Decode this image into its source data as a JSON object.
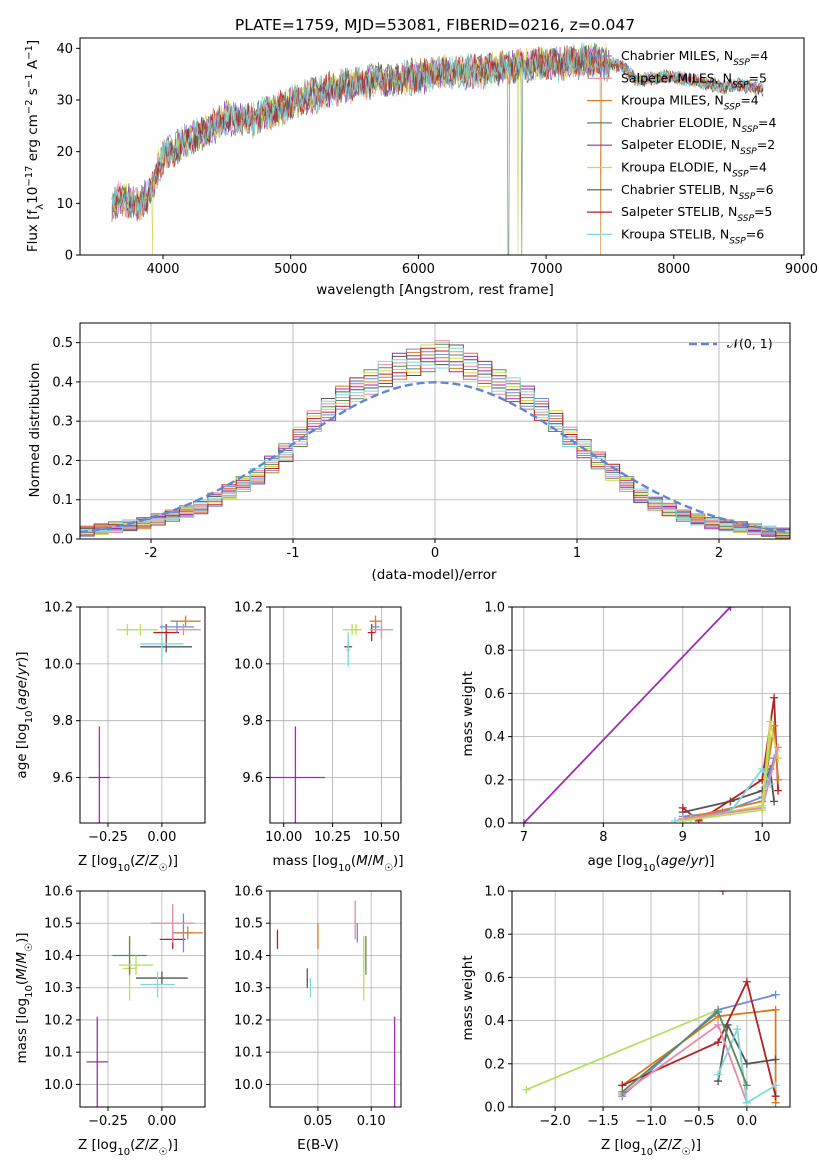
{
  "chart_data": [
    {
      "id": "spectrum",
      "type": "line",
      "title": "PLATE=1759, MJD=53081, FIBERID=0216, z=0.047",
      "xlabel": "wavelength [Angstrom, rest frame]",
      "ylabel": "Flux [f_λ10^-17 erg cm^-2 s^-1 A^-1]",
      "xlim": [
        3350,
        9020
      ],
      "ylim": [
        0,
        42
      ],
      "xticks": [
        4000,
        5000,
        6000,
        7000,
        8000,
        9000
      ],
      "yticks": [
        0,
        10,
        20,
        30,
        40
      ],
      "grid": false,
      "legend_position": "top-right",
      "series": [
        {
          "name": "Chabrier MILES, N_SSP=4",
          "color": "#6c8ed6"
        },
        {
          "name": "Salpeter MILES, N_SSP=5",
          "color": "#e88aa8"
        },
        {
          "name": "Kroupa MILES, N_SSP=4",
          "color": "#d97b22"
        },
        {
          "name": "Chabrier ELODIE, N_SSP=4",
          "color": "#5b8a5b"
        },
        {
          "name": "Salpeter ELODIE, N_SSP=2",
          "color": "#9b2fae"
        },
        {
          "name": "Kroupa ELODIE, N_SSP=4",
          "color": "#d6d44a"
        },
        {
          "name": "Chabrier STELIB, N_SSP=6",
          "color": "#555555"
        },
        {
          "name": "Salpeter STELIB, N_SSP=5",
          "color": "#b22222"
        },
        {
          "name": "Kroupa STELIB, N_SSP=6",
          "color": "#7fd8dc"
        }
      ],
      "continuum": {
        "x": [
          3600,
          3700,
          3800,
          3900,
          3950,
          4000,
          4100,
          4200,
          4300,
          4400,
          4500,
          4600,
          4700,
          4800,
          4900,
          5000,
          5100,
          5200,
          5300,
          5400,
          5500,
          5600,
          5700,
          5800,
          5900,
          6000,
          6100,
          6200,
          6300,
          6400,
          6500,
          6600,
          6700,
          6800,
          6900,
          7000,
          7100,
          7200,
          7300,
          7400,
          7500,
          7600,
          7700,
          7800,
          7900,
          8000,
          8100,
          8200,
          8300,
          8400,
          8500,
          8600,
          8700
        ],
        "y": [
          10,
          11,
          9.5,
          12,
          16,
          19,
          20.5,
          22.5,
          23.5,
          25,
          26.5,
          26.5,
          26,
          27.5,
          28,
          29.5,
          30.5,
          31,
          32,
          32.5,
          33,
          33.5,
          34,
          34,
          34.5,
          34.5,
          35,
          35.5,
          35.5,
          35.5,
          35.5,
          36,
          36.5,
          36.5,
          37,
          37,
          37,
          37.5,
          37.5,
          37.5,
          37,
          36.5,
          34,
          34,
          34.5,
          34.5,
          34,
          33.5,
          33,
          32.5,
          33,
          32.5,
          32
        ]
      },
      "dips": [
        {
          "x": 3920,
          "series": "Kroupa ELODIE, N_SSP=4"
        },
        {
          "x": 6705,
          "series": "Chabrier ELODIE, N_SSP=4"
        },
        {
          "x": 6780,
          "series": "Kroupa ELODIE, N_SSP=4"
        },
        {
          "x": 6810,
          "series": "Chabrier ELODIE, N_SSP=4"
        },
        {
          "x": 7430,
          "series": "Kroupa MILES, N_SSP=4"
        }
      ]
    },
    {
      "id": "residuals",
      "type": "step",
      "xlabel": "(data-model)/error",
      "ylabel": "Normed distribution",
      "xlim": [
        -2.5,
        2.5
      ],
      "ylim": [
        0,
        0.55
      ],
      "xticks": [
        -2,
        -1,
        0,
        1,
        2
      ],
      "yticks": [
        0.0,
        0.1,
        0.2,
        0.3,
        0.4,
        0.5
      ],
      "grid": true,
      "legend_position": "top-right",
      "reference_label": "𝒩(0, 1)",
      "reference_color": "#5f86d2",
      "bin_width": 0.1,
      "base_profile": [
        0.02,
        0.025,
        0.03,
        0.035,
        0.04,
        0.05,
        0.06,
        0.07,
        0.08,
        0.1,
        0.12,
        0.14,
        0.16,
        0.19,
        0.22,
        0.26,
        0.3,
        0.33,
        0.36,
        0.38,
        0.4,
        0.42,
        0.44,
        0.45,
        0.46,
        0.47,
        0.46,
        0.44,
        0.42,
        0.4,
        0.38,
        0.36,
        0.33,
        0.3,
        0.26,
        0.23,
        0.2,
        0.17,
        0.14,
        0.11,
        0.09,
        0.075,
        0.06,
        0.05,
        0.04,
        0.035,
        0.03,
        0.025,
        0.02,
        0.015
      ]
    },
    {
      "id": "age-vs-Z",
      "type": "scatter",
      "xlabel": "Z [log10(Z/Z☉)]",
      "ylabel": "age [log10(age/yr)]",
      "xlim": [
        -0.38,
        0.2
      ],
      "ylim": [
        9.44,
        10.2
      ],
      "xticks": [
        -0.25,
        0.0
      ],
      "xtick_labels": [
        "−0.25",
        "0.00"
      ],
      "yticks": [
        9.6,
        9.8,
        10.0,
        10.2
      ],
      "grid": true,
      "points": [
        {
          "color": "#9b2fae",
          "x": -0.29,
          "y": 9.6,
          "xerr": 0.05,
          "yerr": 0.18
        },
        {
          "color": "#d6d44a",
          "x": -0.16,
          "y": 10.12,
          "xerr": 0.05,
          "yerr": 0.02
        },
        {
          "color": "#b5e060",
          "x": -0.1,
          "y": 10.12,
          "xerr": 0.08,
          "yerr": 0.02
        },
        {
          "color": "#555555",
          "x": 0.02,
          "y": 10.06,
          "xerr": 0.12,
          "yerr": 0.02
        },
        {
          "color": "#7fd8dc",
          "x": 0.0,
          "y": 10.07,
          "xerr": 0.1,
          "yerr": 0.07
        },
        {
          "color": "#b22222",
          "x": 0.02,
          "y": 10.11,
          "xerr": 0.06,
          "yerr": 0.03
        },
        {
          "color": "#6c8ed6",
          "x": 0.07,
          "y": 10.13,
          "xerr": 0.08,
          "yerr": 0.02
        },
        {
          "color": "#d97b22",
          "x": 0.11,
          "y": 10.15,
          "xerr": 0.07,
          "yerr": 0.02
        },
        {
          "color": "#e88aa8",
          "x": 0.1,
          "y": 10.12,
          "xerr": 0.08,
          "yerr": 0.02
        }
      ]
    },
    {
      "id": "age-vs-mass",
      "type": "scatter",
      "xlabel": "mass [log10(M/M☉)]",
      "ylabel": "",
      "xlim": [
        9.93,
        10.6
      ],
      "ylim": [
        9.44,
        10.2
      ],
      "xticks": [
        10.0,
        10.25,
        10.5
      ],
      "xtick_labels": [
        "10.00",
        "10.25",
        "10.50"
      ],
      "yticks": [
        9.6,
        9.8,
        10.0,
        10.2
      ],
      "grid": true,
      "points": [
        {
          "color": "#9b2fae",
          "x": 10.06,
          "y": 9.6,
          "xerr": 0.15,
          "yerr": 0.18
        },
        {
          "color": "#555555",
          "x": 10.33,
          "y": 10.06,
          "xerr": 0.02,
          "yerr": 0.02
        },
        {
          "color": "#7fd8dc",
          "x": 10.33,
          "y": 10.05,
          "xerr": 0.01,
          "yerr": 0.06
        },
        {
          "color": "#d6d44a",
          "x": 10.37,
          "y": 10.12,
          "xerr": 0.03,
          "yerr": 0.02
        },
        {
          "color": "#b5e060",
          "x": 10.35,
          "y": 10.12,
          "xerr": 0.05,
          "yerr": 0.02
        },
        {
          "color": "#b22222",
          "x": 10.45,
          "y": 10.11,
          "xerr": 0.02,
          "yerr": 0.03
        },
        {
          "color": "#6c8ed6",
          "x": 10.47,
          "y": 10.13,
          "xerr": 0.02,
          "yerr": 0.02
        },
        {
          "color": "#d97b22",
          "x": 10.47,
          "y": 10.15,
          "xerr": 0.03,
          "yerr": 0.02
        },
        {
          "color": "#e88aa8",
          "x": 10.5,
          "y": 10.12,
          "xerr": 0.06,
          "yerr": 0.03
        }
      ]
    },
    {
      "id": "mass-weight-vs-age",
      "type": "line",
      "xlabel": "age [log10(age/yr)]",
      "ylabel": "mass weight",
      "xlim": [
        6.85,
        10.35
      ],
      "ylim": [
        0,
        1
      ],
      "xticks": [
        7,
        8,
        9,
        10
      ],
      "yticks": [
        0.0,
        0.2,
        0.4,
        0.6,
        0.8,
        1.0
      ],
      "grid": true,
      "series": [
        {
          "color": "#9b2fae",
          "x": [
            7.0,
            9.6
          ],
          "y": [
            0.0,
            1.0
          ]
        },
        {
          "color": "#555555",
          "x": [
            9.0,
            9.6,
            10.0,
            10.1,
            10.15
          ],
          "y": [
            0.05,
            0.1,
            0.15,
            0.25,
            0.1
          ]
        },
        {
          "color": "#b22222",
          "x": [
            9.0,
            9.2,
            10.0,
            10.15,
            10.2
          ],
          "y": [
            0.07,
            0.01,
            0.2,
            0.58,
            0.15
          ]
        },
        {
          "color": "#6c8ed6",
          "x": [
            9.0,
            9.5,
            10.0,
            10.15
          ],
          "y": [
            0.03,
            0.05,
            0.12,
            0.3
          ]
        },
        {
          "color": "#d97b22",
          "x": [
            9.0,
            10.0,
            10.15,
            10.2
          ],
          "y": [
            0.02,
            0.1,
            0.45,
            0.2
          ]
        },
        {
          "color": "#d6d44a",
          "x": [
            9.1,
            10.0,
            10.1,
            10.2
          ],
          "y": [
            0.02,
            0.08,
            0.47,
            0.3
          ]
        },
        {
          "color": "#7fd8dc",
          "x": [
            8.9,
            9.6,
            10.0,
            10.1
          ],
          "y": [
            0.01,
            0.05,
            0.25,
            0.18
          ]
        },
        {
          "color": "#e88aa8",
          "x": [
            9.0,
            10.0,
            10.2
          ],
          "y": [
            0.02,
            0.07,
            0.35
          ]
        },
        {
          "color": "#b5e060",
          "x": [
            9.0,
            10.0,
            10.1
          ],
          "y": [
            0.01,
            0.06,
            0.4
          ]
        }
      ]
    },
    {
      "id": "mass-vs-Z",
      "type": "scatter",
      "xlabel": "Z [log10(Z/Z☉)]",
      "ylabel": "mass [log10(M/M☉)]",
      "xlim": [
        -0.38,
        0.2
      ],
      "ylim": [
        9.93,
        10.6
      ],
      "xticks": [
        -0.25,
        0.0
      ],
      "xtick_labels": [
        "−0.25",
        "0.00"
      ],
      "yticks": [
        10.0,
        10.1,
        10.2,
        10.3,
        10.4,
        10.5,
        10.6
      ],
      "grid": true,
      "points": [
        {
          "color": "#9b2fae",
          "x": -0.3,
          "y": 10.07,
          "xerr": 0.05,
          "yerr": 0.14
        },
        {
          "color": "#d6d44a",
          "x": -0.15,
          "y": 10.36,
          "xerr": 0.03,
          "yerr": 0.1
        },
        {
          "color": "#5b8a5b",
          "x": -0.15,
          "y": 10.4,
          "xerr": 0.08,
          "yerr": 0.06
        },
        {
          "color": "#b5e060",
          "x": -0.12,
          "y": 10.37,
          "xerr": 0.08,
          "yerr": 0.03
        },
        {
          "color": "#555555",
          "x": 0.0,
          "y": 10.33,
          "xerr": 0.12,
          "yerr": 0.02
        },
        {
          "color": "#7fd8dc",
          "x": -0.02,
          "y": 10.31,
          "xerr": 0.08,
          "yerr": 0.04
        },
        {
          "color": "#b22222",
          "x": 0.05,
          "y": 10.45,
          "xerr": 0.06,
          "yerr": 0.03
        },
        {
          "color": "#6c8ed6",
          "x": 0.1,
          "y": 10.47,
          "xerr": 0.05,
          "yerr": 0.06
        },
        {
          "color": "#d97b22",
          "x": 0.12,
          "y": 10.47,
          "xerr": 0.07,
          "yerr": 0.02
        },
        {
          "color": "#e88aa8",
          "x": 0.05,
          "y": 10.5,
          "xerr": 0.1,
          "yerr": 0.06
        }
      ]
    },
    {
      "id": "mass-vs-EBV",
      "type": "scatter",
      "xlabel": "E(B-V)",
      "ylabel": "",
      "xlim": [
        0.005,
        0.128
      ],
      "ylim": [
        9.93,
        10.6
      ],
      "xticks": [
        0.05,
        0.1
      ],
      "xtick_labels": [
        "0.05",
        "0.10"
      ],
      "yticks": [
        10.0,
        10.1,
        10.2,
        10.3,
        10.4,
        10.5,
        10.6
      ],
      "grid": true,
      "points": [
        {
          "color": "#b22222",
          "x": 0.012,
          "y": 10.45,
          "yerr": 0.03
        },
        {
          "color": "#555555",
          "x": 0.04,
          "y": 10.33,
          "yerr": 0.03
        },
        {
          "color": "#7fd8dc",
          "x": 0.043,
          "y": 10.3,
          "yerr": 0.03
        },
        {
          "color": "#d97b22",
          "x": 0.05,
          "y": 10.46,
          "yerr": 0.04
        },
        {
          "color": "#e88aa8",
          "x": 0.085,
          "y": 10.51,
          "yerr": 0.06
        },
        {
          "color": "#6c8ed6",
          "x": 0.087,
          "y": 10.47,
          "yerr": 0.03
        },
        {
          "color": "#d6d44a",
          "x": 0.093,
          "y": 10.36,
          "yerr": 0.1
        },
        {
          "color": "#5b8a5b",
          "x": 0.095,
          "y": 10.4,
          "yerr": 0.06
        },
        {
          "color": "#9b2fae",
          "x": 0.122,
          "y": 10.07,
          "yerr": 0.14
        }
      ]
    },
    {
      "id": "mass-weight-vs-Z",
      "type": "line",
      "xlabel": "Z [log10(Z/Z☉)]",
      "ylabel": "mass weight",
      "xlim": [
        -2.45,
        0.45
      ],
      "ylim": [
        0,
        1
      ],
      "xticks": [
        -2.0,
        -1.5,
        -1.0,
        -0.5,
        0.0
      ],
      "xtick_labels": [
        "−2.0",
        "−1.5",
        "−1.0",
        "−0.5",
        "0.0"
      ],
      "yticks": [
        0.0,
        0.2,
        0.4,
        0.6,
        0.8,
        1.0
      ],
      "grid": true,
      "series": [
        {
          "color": "#b5e060",
          "x": [
            -2.3,
            -0.3
          ],
          "y": [
            0.08,
            0.45
          ]
        },
        {
          "color": "#9b2fae",
          "x": [
            -0.25,
            -0.3
          ],
          "y": [
            1.0,
            1.1
          ]
        },
        {
          "color": "#6c8ed6",
          "x": [
            -1.3,
            -0.3,
            0.3
          ],
          "y": [
            0.05,
            0.45,
            0.52
          ]
        },
        {
          "color": "#d97b22",
          "x": [
            -1.3,
            -0.3,
            0.3,
            0.3
          ],
          "y": [
            0.1,
            0.42,
            0.45,
            0.02
          ]
        },
        {
          "color": "#b22222",
          "x": [
            -1.3,
            -0.3,
            0.0,
            0.3
          ],
          "y": [
            0.1,
            0.3,
            0.58,
            0.05
          ]
        },
        {
          "color": "#555555",
          "x": [
            -0.3,
            -0.2,
            0.0,
            0.3
          ],
          "y": [
            0.12,
            0.38,
            0.2,
            0.22
          ]
        },
        {
          "color": "#e88aa8",
          "x": [
            -1.3,
            -0.3,
            0.0
          ],
          "y": [
            0.06,
            0.38,
            0.02
          ]
        },
        {
          "color": "#7fd8dc",
          "x": [
            -0.3,
            -0.1,
            0.0,
            0.3
          ],
          "y": [
            0.15,
            0.36,
            0.02,
            0.1
          ]
        },
        {
          "color": "#5b8a5b",
          "x": [
            -1.3,
            -0.3,
            0.0
          ],
          "y": [
            0.07,
            0.44,
            0.1
          ]
        }
      ]
    }
  ]
}
